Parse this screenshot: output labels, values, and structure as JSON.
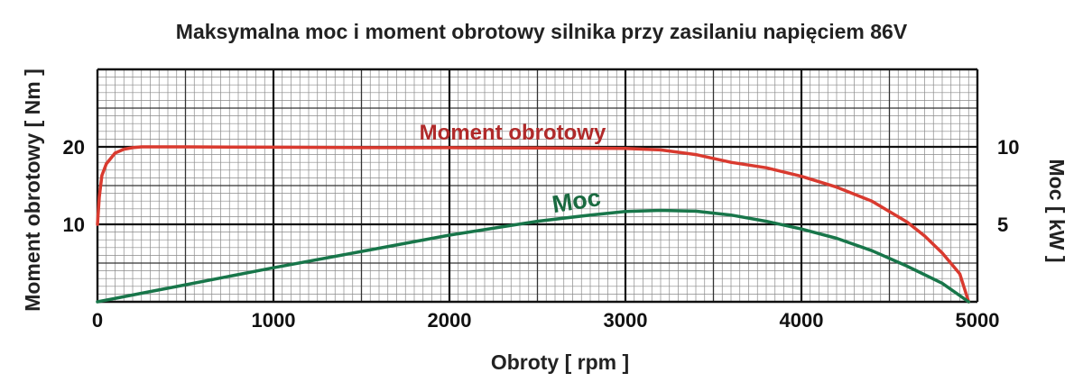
{
  "chart_data": {
    "type": "line",
    "title": "Maksymalna moc i moment obrotowy silnika przy zasilaniu napięciem 86V",
    "xlabel": "Obroty [ rpm ]",
    "ylabel_left": "Moment obrotowy [ Nm ]",
    "ylabel_right": "Moc [ kW ]",
    "xlim": [
      0,
      5000
    ],
    "ylim_left": [
      0,
      30
    ],
    "ylim_right": [
      0,
      15
    ],
    "x_ticks": [
      0,
      1000,
      2000,
      3000,
      4000,
      5000
    ],
    "x_tick_labels": [
      "0",
      "1000",
      "2000",
      "3000",
      "4000",
      "5000"
    ],
    "y_left_ticks": [
      10,
      20
    ],
    "y_left_tick_labels": [
      "10",
      "20"
    ],
    "y_right_ticks": [
      5,
      10
    ],
    "y_right_tick_labels": [
      "5",
      "10"
    ],
    "grid": true,
    "series": [
      {
        "name": "Moment obrotowy",
        "axis": "left",
        "color": "#d93a2f",
        "label_color": "#b02a2a",
        "x": [
          0,
          10,
          25,
          50,
          100,
          150,
          200,
          250,
          300,
          500,
          1000,
          1500,
          2000,
          2500,
          3000,
          3200,
          3400,
          3600,
          3800,
          4000,
          4200,
          4400,
          4600,
          4700,
          4800,
          4900,
          4950
        ],
        "y": [
          10,
          13.5,
          16.3,
          17.8,
          19.2,
          19.7,
          19.9,
          20,
          20,
          20,
          19.95,
          19.9,
          19.9,
          19.85,
          19.8,
          19.6,
          19,
          18,
          17.3,
          16.2,
          14.8,
          13,
          10.3,
          8.5,
          6.3,
          3.6,
          0
        ]
      },
      {
        "name": "Moc",
        "axis": "right",
        "color": "#18764a",
        "label_color": "#1a6a40",
        "x": [
          0,
          250,
          500,
          1000,
          1500,
          2000,
          2500,
          2800,
          3000,
          3200,
          3400,
          3600,
          3800,
          4000,
          4200,
          4400,
          4600,
          4800,
          4950
        ],
        "y": [
          0,
          0.55,
          1.1,
          2.2,
          3.25,
          4.3,
          5.2,
          5.6,
          5.83,
          5.9,
          5.85,
          5.6,
          5.2,
          4.7,
          4.1,
          3.3,
          2.3,
          1.2,
          0
        ]
      }
    ]
  }
}
